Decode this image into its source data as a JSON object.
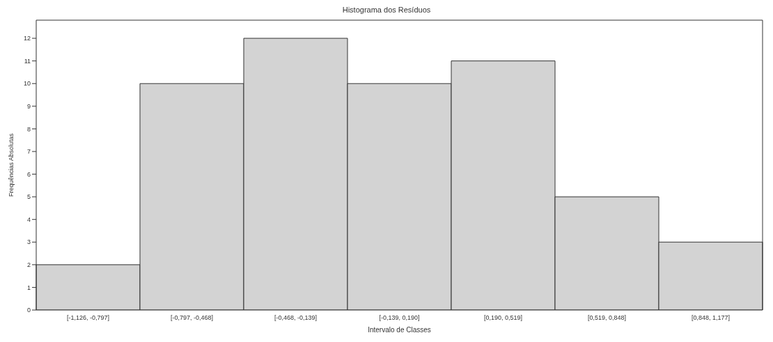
{
  "chart_data": {
    "type": "bar",
    "title": "Histograma dos Resíduos",
    "xlabel": "Intervalo de Classes",
    "ylabel": "Frequências Absolutas",
    "categories": [
      "[-1,126, -0,797]",
      "[-0,797, -0,468]",
      "[-0,468, -0,139]",
      "[-0,139, 0,190]",
      "[0,190, 0,519]",
      "[0,519, 0,848]",
      "[0,848, 1,177]"
    ],
    "values": [
      2,
      10,
      12,
      10,
      11,
      5,
      3
    ],
    "color": "#d3d3d3",
    "ylim": [
      0,
      12.8
    ],
    "yticks": [
      0,
      1,
      2,
      3,
      4,
      5,
      6,
      7,
      8,
      9,
      10,
      11,
      12
    ]
  }
}
